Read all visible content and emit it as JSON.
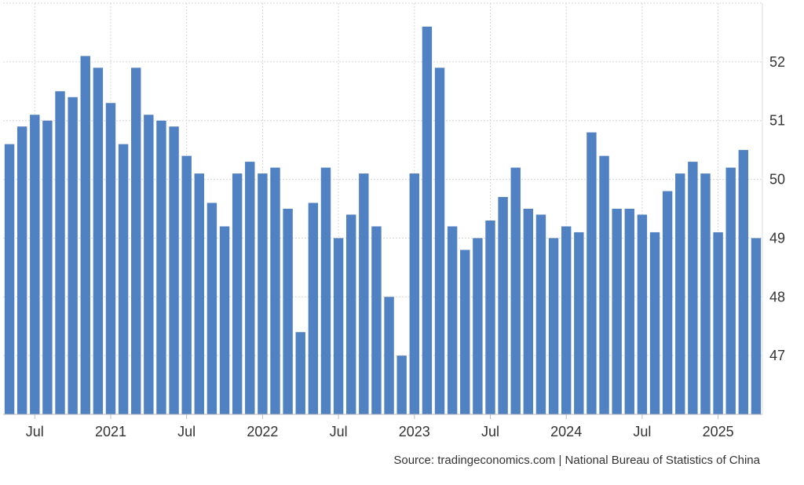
{
  "source_text": "Source: tradingeconomics.com | National Bureau of Statistics of China",
  "chart_data": {
    "type": "bar",
    "title": "",
    "xlabel": "",
    "ylabel": "",
    "ylim": [
      46,
      53
    ],
    "yticks": [
      47,
      48,
      49,
      50,
      51,
      52
    ],
    "grid": true,
    "bar_color": "#5081C2",
    "x": [
      "2020-05",
      "2020-06",
      "2020-07",
      "2020-08",
      "2020-09",
      "2020-10",
      "2020-11",
      "2020-12",
      "2021-01",
      "2021-02",
      "2021-03",
      "2021-04",
      "2021-05",
      "2021-06",
      "2021-07",
      "2021-08",
      "2021-09",
      "2021-10",
      "2021-11",
      "2021-12",
      "2022-01",
      "2022-02",
      "2022-03",
      "2022-04",
      "2022-05",
      "2022-06",
      "2022-07",
      "2022-08",
      "2022-09",
      "2022-10",
      "2022-11",
      "2022-12",
      "2023-01",
      "2023-02",
      "2023-03",
      "2023-04",
      "2023-05",
      "2023-06",
      "2023-07",
      "2023-08",
      "2023-09",
      "2023-10",
      "2023-11",
      "2023-12",
      "2024-01",
      "2024-02",
      "2024-03",
      "2024-04",
      "2024-05",
      "2024-06",
      "2024-07",
      "2024-08",
      "2024-09",
      "2024-10",
      "2024-11",
      "2024-12",
      "2025-01",
      "2025-02",
      "2025-03",
      "2025-04"
    ],
    "values": [
      50.6,
      50.9,
      51.1,
      51.0,
      51.5,
      51.4,
      52.1,
      51.9,
      51.3,
      50.6,
      51.9,
      51.1,
      51.0,
      50.9,
      50.4,
      50.1,
      49.6,
      49.2,
      50.1,
      50.3,
      50.1,
      50.2,
      49.5,
      47.4,
      49.6,
      50.2,
      49.0,
      49.4,
      50.1,
      49.2,
      48.0,
      47.0,
      50.1,
      52.6,
      51.9,
      49.2,
      48.8,
      49.0,
      49.3,
      49.7,
      50.2,
      49.5,
      49.4,
      49.0,
      49.2,
      49.1,
      50.8,
      50.4,
      49.5,
      49.5,
      49.4,
      49.1,
      49.8,
      50.1,
      50.3,
      50.1,
      49.1,
      50.2,
      50.5,
      49.0
    ],
    "x_tick_labels": [
      {
        "label": "Jul",
        "x": "2020-07"
      },
      {
        "label": "2021",
        "x": "2021-01"
      },
      {
        "label": "Jul",
        "x": "2021-07"
      },
      {
        "label": "2022",
        "x": "2022-01"
      },
      {
        "label": "Jul",
        "x": "2022-07"
      },
      {
        "label": "2023",
        "x": "2023-01"
      },
      {
        "label": "Jul",
        "x": "2023-07"
      },
      {
        "label": "2024",
        "x": "2024-01"
      },
      {
        "label": "Jul",
        "x": "2024-07"
      },
      {
        "label": "2025",
        "x": "2025-01"
      }
    ]
  }
}
